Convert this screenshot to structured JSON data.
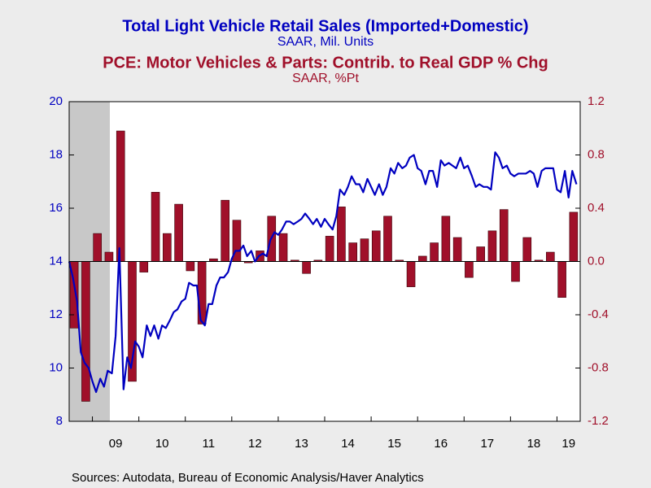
{
  "chart_data": {
    "type": "combo",
    "source": "Sources:  Autodata, Bureau of Economic Analysis/Haver Analytics",
    "xlim": [
      2008.5,
      2019.5
    ],
    "xticks": [
      {
        "value": 2009,
        "label": "09"
      },
      {
        "value": 2010,
        "label": "10"
      },
      {
        "value": 2011,
        "label": "11"
      },
      {
        "value": 2012,
        "label": "12"
      },
      {
        "value": 2013,
        "label": "13"
      },
      {
        "value": 2014,
        "label": "14"
      },
      {
        "value": 2015,
        "label": "15"
      },
      {
        "value": 2016,
        "label": "16"
      },
      {
        "value": 2017,
        "label": "17"
      },
      {
        "value": 2018,
        "label": "18"
      },
      {
        "value": 2019,
        "label": "19"
      }
    ],
    "ylim": [
      8,
      20
    ],
    "yticks": [
      8,
      10,
      12,
      14,
      16,
      18,
      20
    ],
    "y2lim": [
      -1.2,
      1.2
    ],
    "y2ticks": [
      -1.2,
      -0.8,
      -0.4,
      {
        "value": 0,
        "label": "0.0"
      },
      0.4,
      0.8,
      1.2
    ],
    "shaded": [
      2008.5,
      2009.375
    ],
    "series": [
      {
        "name": "Total Light Vehicle Retail Sales (Imported+Domestic)",
        "unit": "SAAR, Mil. Units",
        "type": "line",
        "color": "#0000c0",
        "x": [
          2008.5,
          2008.58,
          2008.67,
          2008.75,
          2008.83,
          2008.92,
          2009,
          2009.08,
          2009.17,
          2009.25,
          2009.33,
          2009.42,
          2009.5,
          2009.58,
          2009.67,
          2009.75,
          2009.83,
          2009.92,
          2010,
          2010.08,
          2010.17,
          2010.25,
          2010.33,
          2010.42,
          2010.5,
          2010.58,
          2010.67,
          2010.75,
          2010.83,
          2010.92,
          2011,
          2011.08,
          2011.17,
          2011.25,
          2011.33,
          2011.42,
          2011.5,
          2011.58,
          2011.67,
          2011.75,
          2011.83,
          2011.92,
          2012,
          2012.08,
          2012.17,
          2012.25,
          2012.33,
          2012.42,
          2012.5,
          2012.58,
          2012.67,
          2012.75,
          2012.83,
          2012.92,
          2013,
          2013.08,
          2013.17,
          2013.25,
          2013.33,
          2013.42,
          2013.5,
          2013.58,
          2013.67,
          2013.75,
          2013.83,
          2013.92,
          2014,
          2014.08,
          2014.17,
          2014.25,
          2014.33,
          2014.42,
          2014.5,
          2014.58,
          2014.67,
          2014.75,
          2014.83,
          2014.92,
          2015,
          2015.08,
          2015.17,
          2015.25,
          2015.33,
          2015.42,
          2015.5,
          2015.58,
          2015.67,
          2015.75,
          2015.83,
          2015.92,
          2016,
          2016.08,
          2016.17,
          2016.25,
          2016.33,
          2016.42,
          2016.5,
          2016.58,
          2016.67,
          2016.75,
          2016.83,
          2016.92,
          2017,
          2017.08,
          2017.17,
          2017.25,
          2017.33,
          2017.42,
          2017.5,
          2017.58,
          2017.67,
          2017.75,
          2017.83,
          2017.92,
          2018,
          2018.08,
          2018.17,
          2018.25,
          2018.33,
          2018.42,
          2018.5,
          2018.58,
          2018.67,
          2018.75,
          2018.83,
          2018.92,
          2019,
          2019.08,
          2019.17,
          2019.25,
          2019.33,
          2019.42
        ],
        "values": [
          14.0,
          13.4,
          12.5,
          10.6,
          10.2,
          10.0,
          9.5,
          9.1,
          9.6,
          9.3,
          9.9,
          9.8,
          11.2,
          14.5,
          9.2,
          10.4,
          10.0,
          11.0,
          10.8,
          10.4,
          11.6,
          11.2,
          11.6,
          11.1,
          11.6,
          11.5,
          11.8,
          12.1,
          12.2,
          12.5,
          12.6,
          13.2,
          13.1,
          13.1,
          11.8,
          11.6,
          12.4,
          12.4,
          13.1,
          13.4,
          13.4,
          13.6,
          14.1,
          14.4,
          14.4,
          14.6,
          14.2,
          14.4,
          14.0,
          14.2,
          14.3,
          14.2,
          14.8,
          15.1,
          15.0,
          15.2,
          15.5,
          15.5,
          15.4,
          15.5,
          15.6,
          15.8,
          15.6,
          15.4,
          15.6,
          15.3,
          15.6,
          15.4,
          15.2,
          15.7,
          16.7,
          16.5,
          16.8,
          17.2,
          16.9,
          16.9,
          16.6,
          17.1,
          16.8,
          16.5,
          16.9,
          16.5,
          16.8,
          17.5,
          17.3,
          17.7,
          17.5,
          17.6,
          17.9,
          18.0,
          17.5,
          17.4,
          16.9,
          17.4,
          17.4,
          16.8,
          17.8,
          17.6,
          17.7,
          17.6,
          17.5,
          17.9,
          17.5,
          17.6,
          17.2,
          16.8,
          16.9,
          16.8,
          16.8,
          16.7,
          18.1,
          17.9,
          17.5,
          17.6,
          17.3,
          17.2,
          17.3,
          17.3,
          17.3,
          17.4,
          17.3,
          16.8,
          17.4,
          17.5,
          17.5,
          17.5,
          16.7,
          16.6,
          17.4,
          16.4,
          17.4,
          16.9
        ]
      },
      {
        "name": "PCE: Motor Vehicles & Parts: Contrib. to Real GDP % Chg",
        "unit": "SAAR, %Pt",
        "type": "bar",
        "axis": "y2",
        "color": "#a0102a",
        "x": [
          2008.5,
          2008.75,
          2009,
          2009.25,
          2009.5,
          2009.75,
          2010,
          2010.25,
          2010.5,
          2010.75,
          2011,
          2011.25,
          2011.5,
          2011.75,
          2012,
          2012.25,
          2012.5,
          2012.75,
          2013,
          2013.25,
          2013.5,
          2013.75,
          2014,
          2014.25,
          2014.5,
          2014.75,
          2015,
          2015.25,
          2015.5,
          2015.75,
          2016,
          2016.25,
          2016.5,
          2016.75,
          2017,
          2017.25,
          2017.5,
          2017.75,
          2018,
          2018.25,
          2018.5,
          2018.75,
          2019,
          2019.25
        ],
        "values": [
          -0.5,
          -1.05,
          0.21,
          0.07,
          0.98,
          -0.9,
          -0.08,
          0.52,
          0.21,
          0.43,
          -0.07,
          -0.47,
          0.02,
          0.46,
          0.31,
          -0.01,
          0.08,
          0.34,
          0.21,
          0.01,
          -0.09,
          0.01,
          0.19,
          0.41,
          0.14,
          0.17,
          0.23,
          0.34,
          0.01,
          -0.19,
          0.04,
          0.14,
          0.34,
          0.18,
          -0.12,
          0.11,
          0.23,
          0.39,
          -0.15,
          0.18,
          0.01,
          0.07,
          -0.27,
          0.37
        ]
      }
    ]
  }
}
